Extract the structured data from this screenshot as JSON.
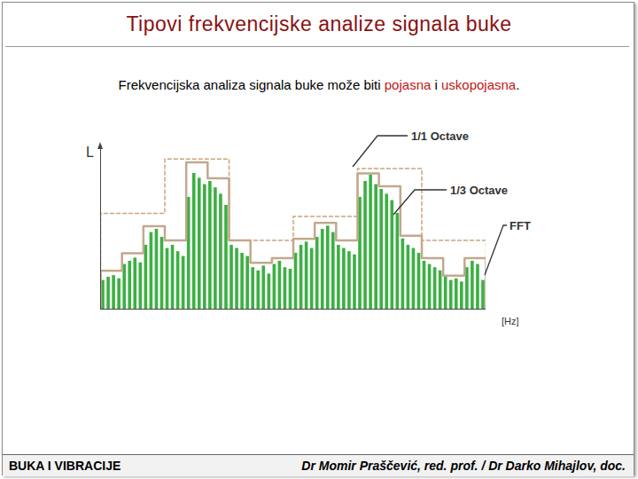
{
  "slide": {
    "title": "Tipovi frekvencijske analize signala buke",
    "text": [
      "Frekvencijska analiza signala buke može biti ",
      "pojasna",
      " i ",
      "uskopojasna",
      "."
    ],
    "footer_left": "BUKA I VIBRACIJE",
    "footer_right": "Dr Momir Praščević, red. prof. / Dr Darko Mihajlov, doc."
  },
  "chart_data": {
    "type": "bar",
    "x_label": "[Hz]",
    "y_label": "L",
    "xlim": [
      0,
      72
    ],
    "ylim": [
      0,
      100
    ],
    "tick_labels": false,
    "grid": false,
    "series": [
      {
        "name": "1/1 Octave",
        "type": "step",
        "line_style": "dashed",
        "color": "#c9a57c",
        "bins": [
          0,
          12,
          24,
          36,
          48,
          60,
          72
        ],
        "values": [
          60,
          94,
          43,
          58,
          88,
          43
        ]
      },
      {
        "name": "1/3 Octave",
        "type": "step",
        "line_style": "solid",
        "color": "#c2a88e",
        "bins": [
          0,
          4,
          8,
          12,
          16,
          20,
          24,
          28,
          32,
          36,
          40,
          44,
          48,
          52,
          56,
          60,
          64,
          68,
          72
        ],
        "values": [
          24,
          35,
          52,
          43,
          92,
          82,
          43,
          29,
          32,
          44,
          54,
          43,
          85,
          77,
          46,
          32,
          21,
          32
        ]
      },
      {
        "name": "FFT",
        "type": "bar",
        "color": "#3cb043",
        "x": [
          0.5,
          1.5,
          2.5,
          3.5,
          4.5,
          5.5,
          6.5,
          7.5,
          8.5,
          9.5,
          10.5,
          11.5,
          12.5,
          13.5,
          14.5,
          15.5,
          16.5,
          17.5,
          18.5,
          19.5,
          20.5,
          21.5,
          22.5,
          23.5,
          24.5,
          25.5,
          26.5,
          27.5,
          28.5,
          29.5,
          30.5,
          31.5,
          32.5,
          33.5,
          34.5,
          35.5,
          36.5,
          37.5,
          38.5,
          39.5,
          40.5,
          41.5,
          42.5,
          43.5,
          44.5,
          45.5,
          46.5,
          47.5,
          48.5,
          49.5,
          50.5,
          51.5,
          52.5,
          53.5,
          54.5,
          55.5,
          56.5,
          57.5,
          58.5,
          59.5,
          60.5,
          61.5,
          62.5,
          63.5,
          64.5,
          65.5,
          66.5,
          67.5,
          68.5,
          69.5,
          70.5,
          71.5
        ],
        "values": [
          18,
          20,
          21,
          19,
          28,
          30,
          32,
          29,
          40,
          48,
          50,
          45,
          38,
          40,
          36,
          33,
          70,
          85,
          82,
          78,
          80,
          76,
          72,
          65,
          40,
          38,
          35,
          33,
          26,
          24,
          27,
          22,
          28,
          30,
          26,
          25,
          35,
          40,
          42,
          38,
          45,
          50,
          52,
          48,
          40,
          38,
          36,
          34,
          70,
          80,
          84,
          78,
          75,
          72,
          68,
          60,
          44,
          40,
          38,
          35,
          30,
          28,
          26,
          24,
          20,
          18,
          19,
          17,
          26,
          30,
          28,
          18
        ]
      }
    ]
  }
}
